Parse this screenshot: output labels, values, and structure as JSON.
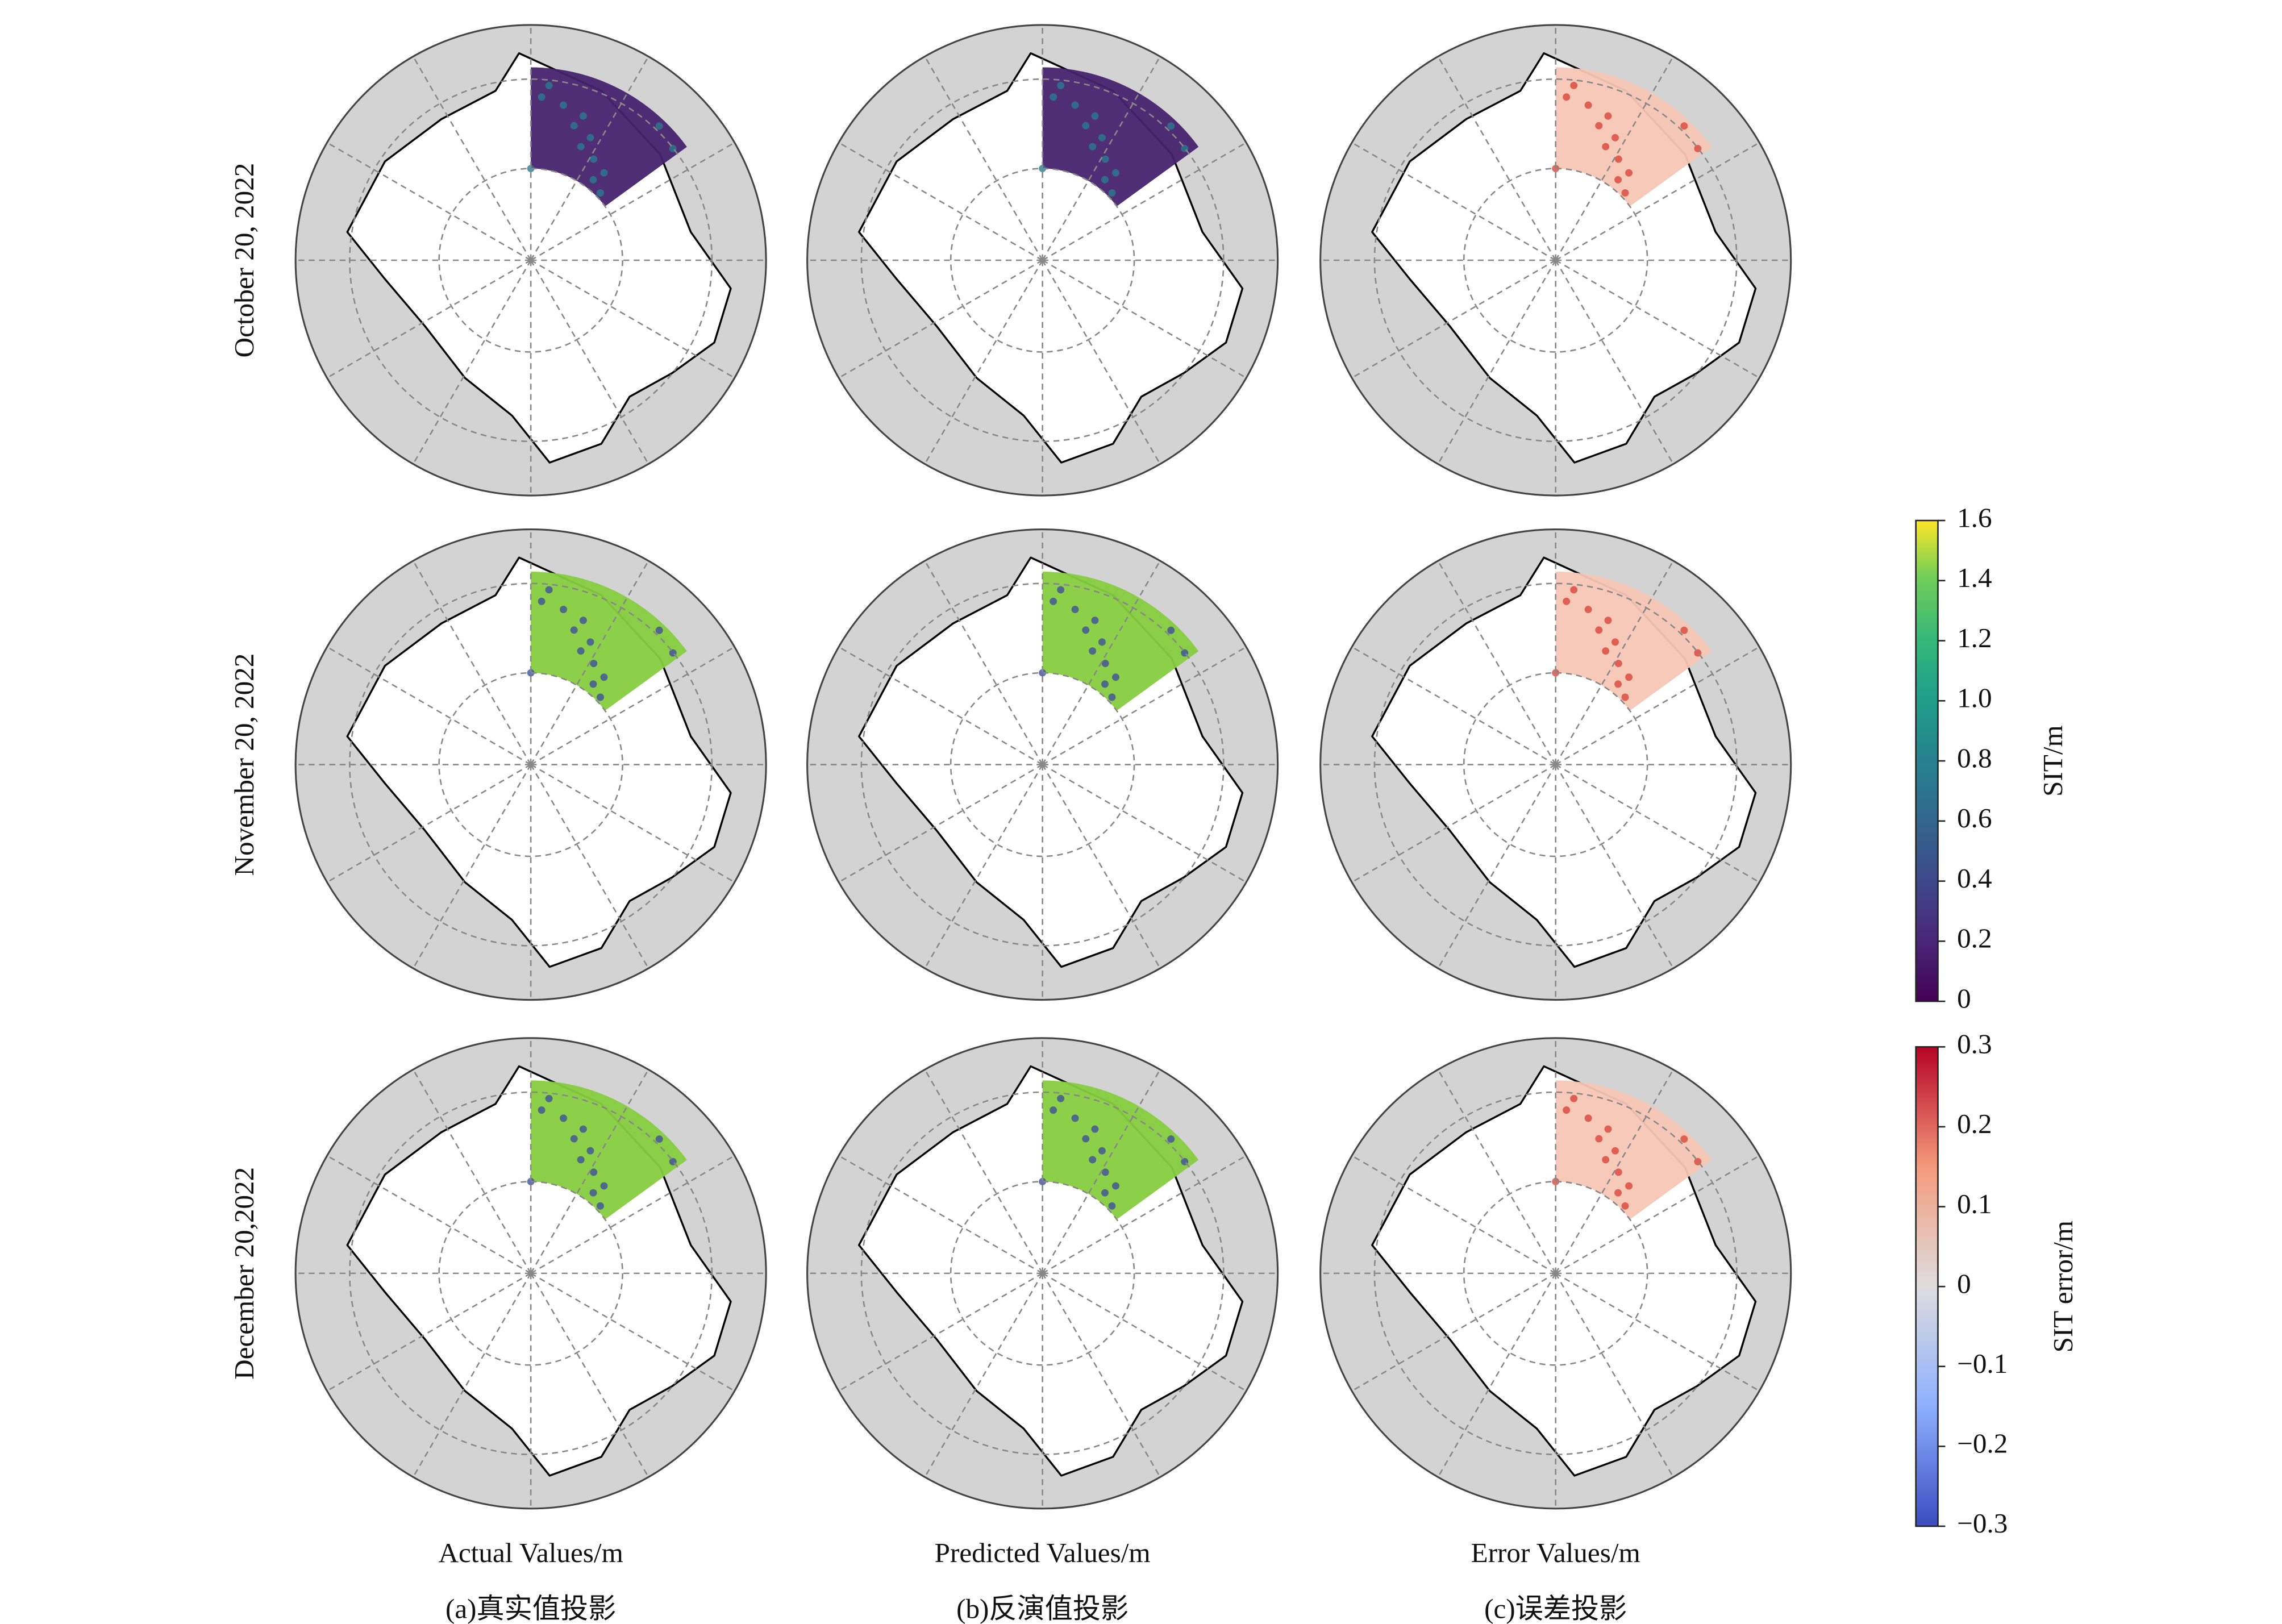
{
  "rows": [
    "October 20, 2022",
    "November 20, 2022",
    "December 20,2022"
  ],
  "columns": [
    {
      "title": "Actual Values/m",
      "caption": "(a)真实值投影"
    },
    {
      "title": "Predicted Values/m",
      "caption": "(b)反演值投影"
    },
    {
      "title": "Error Values/m",
      "caption": "(c)误差投影"
    }
  ],
  "colorbars": [
    {
      "label": "SIT/m",
      "lim": [
        0,
        1.6
      ],
      "ticks": [
        0,
        0.2,
        0.4,
        0.6,
        0.8,
        {
          "value": 1,
          "label": "1.0"
        },
        1.2,
        1.4,
        1.6
      ]
    },
    {
      "label": "SIT error/m",
      "lim": [
        -0.3,
        0.3
      ],
      "ticks": [
        {
          "value": -0.3,
          "label": "−0.3"
        },
        {
          "value": -0.2,
          "label": "−0.2"
        },
        {
          "value": -0.1,
          "label": "−0.1"
        },
        0,
        0.1,
        0.2,
        0.3
      ]
    }
  ]
}
